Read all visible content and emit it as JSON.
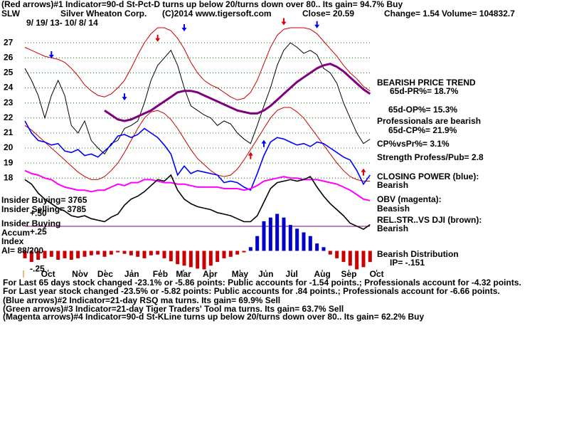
{
  "chart_data": {
    "type": "stock",
    "header": {
      "line1": "(Red arrows)#1 Indicator=90-d St-Pct-D turns up below 20/turns down over 80.. Its gain= 94.7% Buy",
      "symbol": "SLW",
      "company": "Silver Wheaton Corp.",
      "copyright": "(C)2014 www.tigersoft.com",
      "close": "Close= 20.59",
      "change": "Change= 1.54 Volume= 104832.7",
      "dates": "9/ 19/ 13- 10/ 8/ 14"
    },
    "right_labels": [
      "BEARISH PRICE TREND",
      "65d-PR%= 18.7%",
      "65d-OP%= 15.3%",
      "Professionals are bearish",
      "65d-CP%= 21.9%",
      "CP%vsPr%= 3.1%",
      "Strength Profess/Pub= 2.8",
      "CLOSING POWER (blue):",
      "Bearish",
      "OBV (magenta):",
      "Beasish",
      "REL.STR..VS DJI (brown):",
      "Bearish",
      "Bearish Distribution",
      "IP= -.151"
    ],
    "left_labels": [
      "Insider Buying= 3765",
      "Insider Selling= 3785",
      "Insider Buying",
      "Accum",
      "Index",
      "AI= 88/200"
    ],
    "footer": [
      "For Last 65 days stock changed -23.1% or -5.86 points:  Public accounts for -1.54 points.;  Professionals account for -4.32 points.",
      "For Last year stock changed -23.5% or -5.82 points:  Public accounts for  .84 points.;  Professionals account for -6.66 points.",
      "(Blue arrows)#2 Indicator=21-day RSQ ma turns. Its gain= 69.9% Sell",
      "(Green arrows)#3 Indicator=21-day Tiger Traders' Tool ma turns. Its gain= 63.7% Sell",
      "(Magenta arrows)#4 Indicator=90-d St-KLine turns up below 20/turns down over 80.. Its gain= 62.2% Buy"
    ],
    "x": [
      0,
      1,
      2,
      3,
      4,
      5,
      6,
      7,
      8,
      9,
      10,
      11,
      12,
      13,
      14,
      15,
      16,
      17,
      18,
      19,
      20,
      21,
      22,
      23,
      24,
      25,
      26,
      27,
      28,
      29,
      30,
      31,
      32,
      33,
      34,
      35,
      36,
      37,
      38,
      39,
      40,
      41,
      42,
      43,
      44,
      45,
      46,
      47,
      48,
      49,
      50,
      51,
      52
    ],
    "xlim": [
      0,
      54
    ],
    "xticks": [
      {
        "value": 3.5,
        "label": "Oct"
      },
      {
        "value": 8.3,
        "label": "Nov"
      },
      {
        "value": 12.1,
        "label": "Dec"
      },
      {
        "value": 16.1,
        "label": "Jan"
      },
      {
        "value": 20.4,
        "label": "Feb"
      },
      {
        "value": 23.9,
        "label": "Mar"
      },
      {
        "value": 27.9,
        "label": "Apr"
      },
      {
        "value": 32.4,
        "label": "May"
      },
      {
        "value": 36.3,
        "label": "Jun"
      },
      {
        "value": 40.2,
        "label": "Jul"
      },
      {
        "value": 44.8,
        "label": "Aug"
      },
      {
        "value": 48.8,
        "label": "Sep"
      },
      {
        "value": 53,
        "label": "Oct"
      }
    ],
    "ylim": [
      12,
      28
    ],
    "yticks": [
      18,
      19,
      20,
      21,
      22,
      23,
      24,
      25,
      26,
      27
    ],
    "grid": true,
    "grid_color": "#008000",
    "series": [
      {
        "color": "#cc0000",
        "values": [
          26.7,
          26.5,
          26.3,
          26.1,
          26,
          25.9,
          25.7,
          25.3,
          24.8,
          24.2,
          23.8,
          23.5,
          23.4,
          23.6,
          24,
          24.5,
          25.3,
          26.2,
          27,
          27.6,
          28,
          28,
          27.8,
          27.3,
          26.6,
          25.7,
          25,
          24.5,
          24.2,
          24,
          23.7,
          23.4,
          23.2,
          23.3,
          23.7,
          24.5,
          25.6,
          26.7,
          27.5,
          27.9,
          28,
          28,
          28,
          27.9,
          27.6,
          27.1,
          26.6,
          26.1,
          25.5,
          25,
          24.6,
          24.1,
          23.8
        ]
      },
      {
        "color": "#cc0000",
        "values": [
          21.5,
          21.2,
          20.8,
          20.4,
          20,
          19.6,
          19.2,
          18.8,
          18.4,
          18.1,
          17.9,
          17.9,
          18.1,
          18.5,
          19,
          19.7,
          20.5,
          21.3,
          22,
          22.4,
          22.5,
          22.3,
          21.9,
          21.3,
          20.6,
          19.9,
          19.3,
          18.9,
          18.5,
          18.2,
          18.1,
          18.2,
          18.6,
          19.2,
          19.9,
          20.6,
          21.3,
          22,
          22.5,
          22.7,
          22.7,
          22.4,
          22,
          21.4,
          20.8,
          20.2,
          19.6,
          19,
          18.5,
          18.1,
          17.9,
          17.8,
          17.8
        ]
      },
      {
        "color": "#000000",
        "values": [
          25.3,
          24.5,
          23.5,
          22,
          23.5,
          24.5,
          23.5,
          21.5,
          21,
          21.8,
          20.5,
          20,
          19.6,
          20.3,
          20.5,
          21.3,
          21.5,
          21.8,
          23,
          24.5,
          25.5,
          26,
          26.5,
          25.5,
          24,
          22.8,
          22.5,
          22.2,
          22,
          21.5,
          21.8,
          21.6,
          21,
          20.6,
          20.3,
          21.5,
          22.8,
          24,
          25.5,
          26.5,
          27,
          26.7,
          26.3,
          26.5,
          26.2,
          25.3,
          25,
          24.3,
          23,
          22,
          21,
          20.3,
          20.59
        ]
      },
      {
        "color": "#800080",
        "values": [
          null,
          null,
          null,
          null,
          null,
          null,
          null,
          null,
          null,
          null,
          null,
          null,
          22.5,
          22.2,
          21.9,
          21.8,
          21.9,
          22.1,
          22.3,
          22.5,
          22.8,
          23.1,
          23.4,
          23.7,
          23.8,
          23.8,
          23.7,
          23.5,
          23.3,
          23.1,
          22.9,
          22.7,
          22.5,
          22.4,
          22.3,
          22.3,
          22.5,
          22.8,
          23.2,
          23.6,
          24,
          24.4,
          24.7,
          25,
          25.3,
          25.5,
          25.6,
          25.4,
          25.1,
          24.7,
          24.3,
          23.9,
          23.6
        ]
      },
      {
        "color": "#0000ff",
        "values": [
          21.8,
          21,
          20.5,
          20.4,
          20.2,
          20.3,
          19.8,
          19.7,
          19.9,
          19.5,
          19.6,
          19.4,
          19.8,
          20.2,
          20.8,
          20.9,
          20.7,
          20.9,
          21.3,
          21,
          20.7,
          20.2,
          19.6,
          18.2,
          18.8,
          18.3,
          18.5,
          18.4,
          18.3,
          18.2,
          17.7,
          17.8,
          17.7,
          17.4,
          17.2,
          18.3,
          19.5,
          20.4,
          20.7,
          20.6,
          20.4,
          20.2,
          20.3,
          20.1,
          20.4,
          20.3,
          20,
          19.7,
          19.4,
          19.2,
          18.5,
          17.6,
          18.2
        ]
      },
      {
        "color": "#ff00ff",
        "values": [
          18.5,
          18.3,
          18.2,
          18,
          17.9,
          17.6,
          17.4,
          17.3,
          17.2,
          17.2,
          17.1,
          17.2,
          17.2,
          17.4,
          17.6,
          17.5,
          17.7,
          17.7,
          17.9,
          17.9,
          17.8,
          17.7,
          17.7,
          17.6,
          17.6,
          17.5,
          17.4,
          17.4,
          17.4,
          17.4,
          17.3,
          17.3,
          17.3,
          17.2,
          17.3,
          17.5,
          17.8,
          17.9,
          18,
          18.1,
          18,
          18,
          17.9,
          17.9,
          17.9,
          17.8,
          17.7,
          17.6,
          17.4,
          17.2,
          16.9,
          16.6,
          16.5
        ]
      },
      {
        "color": "#000000",
        "values": [
          17.9,
          17.6,
          17,
          16.6,
          16.3,
          16,
          15.8,
          15.5,
          15.4,
          15.5,
          15.3,
          15.2,
          15.1,
          15.4,
          15.6,
          16.2,
          16.6,
          16.8,
          17.1,
          17.5,
          17.9,
          17.8,
          18.2,
          17.2,
          16.6,
          16.3,
          16.1,
          16,
          15.9,
          15.7,
          15.6,
          15.5,
          15.3,
          15.1,
          15.1,
          15.5,
          16.4,
          17.3,
          17.7,
          17.8,
          17.9,
          17.8,
          17.9,
          18.1,
          17.4,
          16.8,
          16.3,
          15.9,
          15.5,
          15,
          14.8,
          14.6,
          14.9
        ]
      }
    ],
    "accumulation": {
      "ylim": [
        -0.3,
        0.55
      ],
      "yticks": [
        {
          "value": 0.5,
          "label": "+.50"
        },
        {
          "value": 0.25,
          "label": "+.25"
        },
        {
          "value": -0.25,
          "label": "-.25"
        }
      ],
      "positive_color": "#0000cc",
      "negative_color": "#cc0000",
      "values": [
        -0.1,
        -0.15,
        -0.12,
        -0.1,
        -0.08,
        -0.12,
        -0.1,
        -0.12,
        -0.1,
        -0.08,
        -0.06,
        -0.05,
        -0.08,
        -0.05,
        -0.02,
        -0.04,
        -0.06,
        -0.08,
        -0.1,
        -0.06,
        -0.05,
        -0.1,
        -0.14,
        -0.18,
        -0.2,
        -0.22,
        -0.24,
        -0.25,
        -0.2,
        -0.15,
        -0.1,
        -0.08,
        -0.05,
        -0.02,
        0.05,
        0.2,
        0.4,
        0.45,
        0.5,
        0.45,
        0.35,
        0.3,
        0.25,
        0.2,
        0.1,
        0.05,
        -0.05,
        -0.1,
        -0.15,
        -0.2,
        -0.25,
        -0.22,
        -0.151
      ]
    },
    "arrows": [
      {
        "x": 4,
        "y": 26.2,
        "color": "#0000ff",
        "direction": "down"
      },
      {
        "x": 15,
        "y": 23.4,
        "color": "#0000ff",
        "direction": "down"
      },
      {
        "x": 20,
        "y": 27.3,
        "color": "#dd0000",
        "direction": "down"
      },
      {
        "x": 24,
        "y": 28,
        "color": "#0000ff",
        "direction": "down"
      },
      {
        "x": 34,
        "y": 19.5,
        "color": "#dd0000",
        "direction": "up"
      },
      {
        "x": 36,
        "y": 20.3,
        "color": "#0000ff",
        "direction": "up"
      },
      {
        "x": 39,
        "y": 28.4,
        "color": "#dd0000",
        "direction": "down"
      },
      {
        "x": 44,
        "y": 28.2,
        "color": "#0000ff",
        "direction": "down"
      },
      {
        "x": 51,
        "y": 18.4,
        "color": "#dd0000",
        "direction": "up"
      }
    ]
  }
}
